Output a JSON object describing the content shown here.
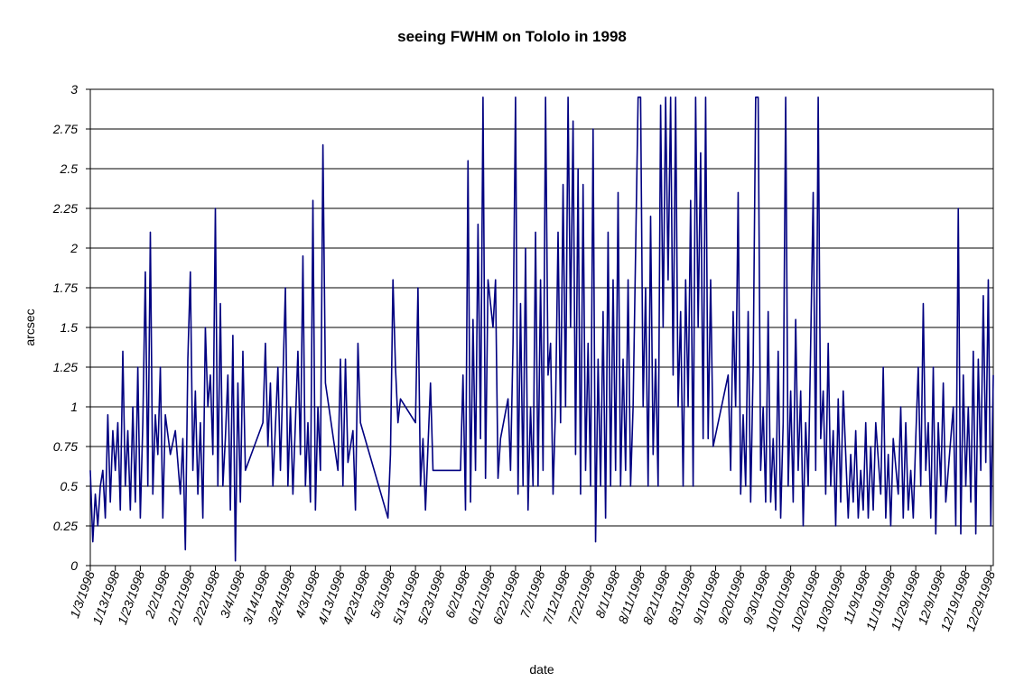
{
  "chart_data": {
    "type": "line",
    "title": "seeing FWHM on Tololo in 1998",
    "x_label": "date",
    "y_label": "arcsec",
    "xlim": [
      "1/3/1998",
      "12/30/1998"
    ],
    "xticks": [
      "1/3/1998",
      "1/13/1998",
      "1/23/1998",
      "2/2/1998",
      "2/12/1998",
      "2/22/1998",
      "3/4/1998",
      "3/14/1998",
      "3/24/1998",
      "4/3/1998",
      "4/13/1998",
      "4/23/1998",
      "5/3/1998",
      "5/13/1998",
      "5/23/1998",
      "6/2/1998",
      "6/12/1998",
      "6/22/1998",
      "7/2/1998",
      "7/12/1998",
      "7/22/1998",
      "8/1/1998",
      "8/11/1998",
      "8/21/1998",
      "8/31/1998",
      "9/10/1998",
      "9/20/1998",
      "9/30/1998",
      "10/10/1998",
      "10/20/1998",
      "10/30/1998",
      "11/9/1998",
      "11/19/1998",
      "11/29/1998",
      "12/9/1998",
      "12/19/1998",
      "12/29/1998"
    ],
    "ylim": [
      0,
      3
    ],
    "yticks": [
      0,
      0.25,
      0.5,
      0.75,
      1,
      1.25,
      1.5,
      1.75,
      2,
      2.25,
      2.5,
      2.75,
      3
    ],
    "grid": true,
    "series": [
      {
        "name": "seeing FWHM",
        "color": "#000080",
        "x": [
          "1/3/1998",
          "1/4/1998",
          "1/5/1998",
          "1/6/1998",
          "1/7/1998",
          "1/8/1998",
          "1/9/1998",
          "1/10/1998",
          "1/11/1998",
          "1/12/1998",
          "1/13/1998",
          "1/14/1998",
          "1/15/1998",
          "1/16/1998",
          "1/17/1998",
          "1/18/1998",
          "1/19/1998",
          "1/20/1998",
          "1/21/1998",
          "1/22/1998",
          "1/23/1998",
          "1/24/1998",
          "1/25/1998",
          "1/26/1998",
          "1/27/1998",
          "1/28/1998",
          "1/29/1998",
          "1/30/1998",
          "1/31/1998",
          "2/1/1998",
          "2/2/1998",
          "2/4/1998",
          "2/6/1998",
          "2/8/1998",
          "2/9/1998",
          "2/10/1998",
          "2/11/1998",
          "2/12/1998",
          "2/13/1998",
          "2/14/1998",
          "2/15/1998",
          "2/16/1998",
          "2/17/1998",
          "2/18/1998",
          "2/19/1998",
          "2/20/1998",
          "2/21/1998",
          "2/22/1998",
          "2/23/1998",
          "2/24/1998",
          "2/25/1998",
          "2/26/1998",
          "2/27/1998",
          "2/28/1998",
          "3/1/1998",
          "3/2/1998",
          "3/3/1998",
          "3/4/1998",
          "3/5/1998",
          "3/6/1998",
          "3/13/1998",
          "3/14/1998",
          "3/15/1998",
          "3/16/1998",
          "3/17/1998",
          "3/19/1998",
          "3/20/1998",
          "3/22/1998",
          "3/23/1998",
          "3/24/1998",
          "3/25/1998",
          "3/27/1998",
          "3/28/1998",
          "3/29/1998",
          "3/30/1998",
          "3/31/1998",
          "4/1/1998",
          "4/2/1998",
          "4/3/1998",
          "4/4/1998",
          "4/5/1998",
          "4/6/1998",
          "4/7/1998",
          "4/12/1998",
          "4/13/1998",
          "4/14/1998",
          "4/15/1998",
          "4/16/1998",
          "4/18/1998",
          "4/19/1998",
          "4/20/1998",
          "4/21/1998",
          "5/2/1998",
          "5/3/1998",
          "5/4/1998",
          "5/5/1998",
          "5/6/1998",
          "5/7/1998",
          "5/13/1998",
          "5/14/1998",
          "5/15/1998",
          "5/16/1998",
          "5/17/1998",
          "5/19/1998",
          "5/20/1998",
          "5/31/1998",
          "6/1/1998",
          "6/2/1998",
          "6/3/1998",
          "6/4/1998",
          "6/5/1998",
          "6/6/1998",
          "6/7/1998",
          "6/8/1998",
          "6/9/1998",
          "6/10/1998",
          "6/11/1998",
          "6/13/1998",
          "6/14/1998",
          "6/15/1998",
          "6/16/1998",
          "6/19/1998",
          "6/20/1998",
          "6/21/1998",
          "6/22/1998",
          "6/23/1998",
          "6/24/1998",
          "6/25/1998",
          "6/26/1998",
          "6/27/1998",
          "6/28/1998",
          "6/29/1998",
          "6/30/1998",
          "7/1/1998",
          "7/2/1998",
          "7/3/1998",
          "7/4/1998",
          "7/5/1998",
          "7/6/1998",
          "7/7/1998",
          "7/8/1998",
          "7/9/1998",
          "7/10/1998",
          "7/11/1998",
          "7/12/1998",
          "7/13/1998",
          "7/14/1998",
          "7/15/1998",
          "7/16/1998",
          "7/17/1998",
          "7/18/1998",
          "7/19/1998",
          "7/20/1998",
          "7/21/1998",
          "7/22/1998",
          "7/23/1998",
          "7/24/1998",
          "7/25/1998",
          "7/26/1998",
          "7/27/1998",
          "7/28/1998",
          "7/29/1998",
          "7/30/1998",
          "7/31/1998",
          "8/1/1998",
          "8/2/1998",
          "8/3/1998",
          "8/4/1998",
          "8/5/1998",
          "8/6/1998",
          "8/7/1998",
          "8/8/1998",
          "8/10/1998",
          "8/11/1998",
          "8/12/1998",
          "8/13/1998",
          "8/14/1998",
          "8/15/1998",
          "8/16/1998",
          "8/17/1998",
          "8/18/1998",
          "8/19/1998",
          "8/20/1998",
          "8/21/1998",
          "8/22/1998",
          "8/23/1998",
          "8/24/1998",
          "8/25/1998",
          "8/26/1998",
          "8/27/1998",
          "8/28/1998",
          "8/29/1998",
          "8/30/1998",
          "8/31/1998",
          "9/1/1998",
          "9/2/1998",
          "9/3/1998",
          "9/4/1998",
          "9/5/1998",
          "9/6/1998",
          "9/7/1998",
          "9/8/1998",
          "9/9/1998",
          "9/15/1998",
          "9/16/1998",
          "9/17/1998",
          "9/18/1998",
          "9/19/1998",
          "9/20/1998",
          "9/21/1998",
          "9/22/1998",
          "9/23/1998",
          "9/24/1998",
          "9/25/1998",
          "9/26/1998",
          "9/27/1998",
          "9/28/1998",
          "9/29/1998",
          "9/30/1998",
          "10/1/1998",
          "10/2/1998",
          "10/3/1998",
          "10/4/1998",
          "10/5/1998",
          "10/6/1998",
          "10/7/1998",
          "10/8/1998",
          "10/9/1998",
          "10/10/1998",
          "10/11/1998",
          "10/12/1998",
          "10/13/1998",
          "10/14/1998",
          "10/15/1998",
          "10/16/1998",
          "10/17/1998",
          "10/18/1998",
          "10/19/1998",
          "10/20/1998",
          "10/21/1998",
          "10/22/1998",
          "10/23/1998",
          "10/24/1998",
          "10/25/1998",
          "10/26/1998",
          "10/27/1998",
          "10/28/1998",
          "10/29/1998",
          "10/30/1998",
          "10/31/1998",
          "11/2/1998",
          "11/3/1998",
          "11/4/1998",
          "11/5/1998",
          "11/6/1998",
          "11/7/1998",
          "11/8/1998",
          "11/9/1998",
          "11/10/1998",
          "11/11/1998",
          "11/12/1998",
          "11/13/1998",
          "11/15/1998",
          "11/16/1998",
          "11/17/1998",
          "11/18/1998",
          "11/19/1998",
          "11/20/1998",
          "11/22/1998",
          "11/23/1998",
          "11/24/1998",
          "11/25/1998",
          "11/26/1998",
          "11/27/1998",
          "11/28/1998",
          "11/29/1998",
          "11/30/1998",
          "12/1/1998",
          "12/2/1998",
          "12/3/1998",
          "12/4/1998",
          "12/5/1998",
          "12/6/1998",
          "12/7/1998",
          "12/8/1998",
          "12/9/1998",
          "12/10/1998",
          "12/11/1998",
          "12/12/1998",
          "12/14/1998",
          "12/15/1998",
          "12/16/1998",
          "12/17/1998",
          "12/18/1998",
          "12/19/1998",
          "12/20/1998",
          "12/21/1998",
          "12/22/1998",
          "12/23/1998",
          "12/24/1998",
          "12/25/1998",
          "12/26/1998",
          "12/27/1998",
          "12/28/1998",
          "12/29/1998",
          "12/30/1998"
        ],
        "values": [
          0.6,
          0.15,
          0.45,
          0.25,
          0.5,
          0.6,
          0.3,
          0.95,
          0.4,
          0.85,
          0.6,
          0.9,
          0.35,
          1.35,
          0.5,
          0.85,
          0.35,
          1.0,
          0.4,
          1.25,
          0.3,
          0.9,
          1.85,
          0.5,
          2.1,
          0.45,
          0.95,
          0.7,
          1.25,
          0.3,
          0.95,
          0.7,
          0.85,
          0.45,
          0.8,
          0.1,
          1.3,
          1.85,
          0.6,
          1.1,
          0.45,
          0.9,
          0.3,
          1.5,
          1.0,
          1.2,
          0.7,
          2.25,
          0.5,
          1.65,
          0.5,
          0.8,
          1.2,
          0.35,
          1.45,
          0.03,
          1.15,
          0.4,
          1.35,
          0.6,
          0.9,
          1.4,
          0.75,
          1.15,
          0.5,
          1.25,
          0.6,
          1.75,
          0.5,
          1.0,
          0.45,
          1.35,
          0.7,
          1.95,
          0.5,
          0.9,
          0.4,
          2.3,
          0.35,
          1.0,
          0.6,
          2.65,
          1.15,
          0.6,
          1.3,
          0.5,
          1.3,
          0.65,
          0.85,
          0.35,
          1.4,
          0.9,
          0.3,
          0.7,
          1.8,
          1.25,
          0.9,
          1.05,
          0.9,
          1.75,
          0.5,
          0.8,
          0.35,
          1.15,
          0.6,
          0.6,
          1.2,
          0.35,
          2.55,
          0.4,
          1.55,
          0.6,
          2.15,
          0.8,
          2.95,
          0.55,
          1.8,
          1.5,
          1.8,
          0.55,
          0.8,
          1.05,
          0.6,
          1.4,
          2.95,
          0.45,
          1.65,
          0.5,
          2.0,
          0.35,
          1.0,
          0.5,
          2.1,
          0.5,
          1.8,
          0.6,
          2.95,
          1.2,
          1.4,
          0.45,
          1.0,
          2.1,
          0.9,
          2.4,
          1.0,
          2.95,
          1.5,
          2.8,
          0.7,
          2.5,
          0.45,
          2.4,
          0.6,
          1.4,
          0.5,
          2.75,
          0.15,
          1.3,
          0.5,
          1.6,
          0.3,
          2.1,
          0.5,
          1.8,
          0.6,
          2.35,
          0.5,
          1.3,
          0.6,
          1.8,
          0.5,
          1.0,
          2.95,
          2.95,
          1.0,
          1.75,
          0.5,
          2.2,
          0.7,
          1.3,
          0.5,
          2.9,
          1.5,
          2.95,
          1.8,
          2.95,
          1.2,
          2.95,
          1.0,
          1.6,
          0.5,
          1.8,
          1.0,
          2.3,
          0.5,
          2.95,
          1.5,
          2.6,
          0.8,
          2.95,
          0.8,
          1.8,
          0.75,
          1.2,
          0.6,
          1.6,
          1.0,
          2.35,
          0.45,
          0.95,
          0.5,
          1.6,
          0.4,
          1.25,
          2.95,
          2.95,
          0.6,
          1.0,
          0.4,
          1.6,
          0.4,
          0.8,
          0.35,
          1.35,
          0.3,
          0.9,
          2.95,
          0.5,
          1.1,
          0.4,
          1.55,
          0.6,
          1.1,
          0.25,
          0.9,
          0.5,
          1.4,
          2.35,
          0.6,
          2.95,
          0.8,
          1.1,
          0.45,
          1.4,
          0.5,
          0.85,
          0.25,
          1.05,
          0.4,
          1.1,
          0.3,
          0.7,
          0.4,
          0.85,
          0.3,
          0.6,
          0.35,
          0.9,
          0.3,
          0.75,
          0.35,
          0.9,
          0.45,
          1.25,
          0.3,
          0.7,
          0.25,
          0.8,
          0.45,
          1.0,
          0.3,
          0.9,
          0.35,
          0.6,
          0.3,
          0.8,
          1.25,
          0.5,
          1.65,
          0.6,
          0.9,
          0.3,
          1.25,
          0.2,
          0.9,
          0.5,
          1.15,
          0.4,
          0.6,
          1.0,
          0.25,
          2.25,
          0.2,
          1.2,
          0.5,
          1.0,
          0.4,
          1.35,
          0.2,
          1.3,
          0.6,
          1.7,
          0.65,
          1.8,
          0.25,
          1.2
        ]
      }
    ]
  }
}
